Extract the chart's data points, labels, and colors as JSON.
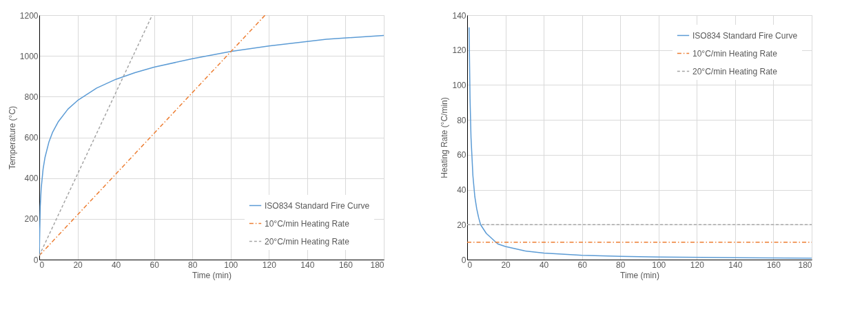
{
  "chart_data": [
    {
      "type": "line",
      "xlabel": "Time (min)",
      "ylabel": "Temperature (°C)",
      "xlim": [
        0,
        180
      ],
      "xticks": [
        0,
        20,
        40,
        60,
        80,
        100,
        120,
        140,
        160,
        180
      ],
      "ylim": [
        0,
        1200
      ],
      "yticks": [
        0,
        200,
        400,
        600,
        800,
        1000,
        1200
      ],
      "grid": true,
      "legend": "bottom right",
      "marker": "none",
      "series": [
        {
          "name": "ISO834 Standard Fire Curve",
          "color": "#5b9bd5",
          "line_style": "solid",
          "x": [
            0,
            0.5,
            1,
            2,
            3,
            5,
            7,
            10,
            15,
            20,
            30,
            40,
            50,
            60,
            80,
            100,
            120,
            150,
            180
          ],
          "values": [
            20,
            261,
            349,
            445,
            502,
            576,
            626,
            678,
            739,
            781,
            842,
            885,
            918,
            945,
            986,
            1022,
            1049,
            1082,
            1100
          ]
        },
        {
          "name": "10°C/min Heating Rate",
          "color": "#ed7d31",
          "line_style": "dashdot",
          "x": [
            0,
            118
          ],
          "values": [
            20,
            1200
          ]
        },
        {
          "name": "20°C/min Heating Rate",
          "color": "#a5a5a5",
          "line_style": "dashed",
          "x": [
            0,
            59
          ],
          "values": [
            20,
            1200
          ]
        }
      ]
    },
    {
      "type": "line",
      "xlabel": "Time (min)",
      "ylabel": "Heating Rate (°C/min)",
      "xlim": [
        0,
        180
      ],
      "xticks": [
        0,
        20,
        40,
        60,
        80,
        100,
        120,
        140,
        160,
        180
      ],
      "ylim": [
        0,
        140
      ],
      "yticks": [
        0,
        20,
        40,
        60,
        80,
        100,
        120,
        140
      ],
      "grid": true,
      "legend": "top right",
      "marker": "none",
      "series": [
        {
          "name": "ISO834 Standard Fire Curve",
          "color": "#5b9bd5",
          "line_style": "solid",
          "x": [
            1,
            1.5,
            2,
            3,
            4,
            5,
            6,
            7,
            10,
            16,
            20,
            30,
            40,
            60,
            80,
            100,
            140,
            180
          ],
          "values": [
            133,
            92,
            70,
            48,
            36,
            29,
            24,
            20,
            15,
            9,
            7.5,
            5,
            3.7,
            2.5,
            1.9,
            1.5,
            1.1,
            0.8
          ]
        },
        {
          "name": "10°C/min Heating Rate",
          "color": "#ed7d31",
          "line_style": "dashdot",
          "x": [
            0,
            180
          ],
          "values": [
            10,
            10
          ]
        },
        {
          "name": "20°C/min Heating Rate",
          "color": "#a5a5a5",
          "line_style": "dashed",
          "x": [
            0,
            180
          ],
          "values": [
            20,
            20
          ]
        }
      ]
    }
  ]
}
